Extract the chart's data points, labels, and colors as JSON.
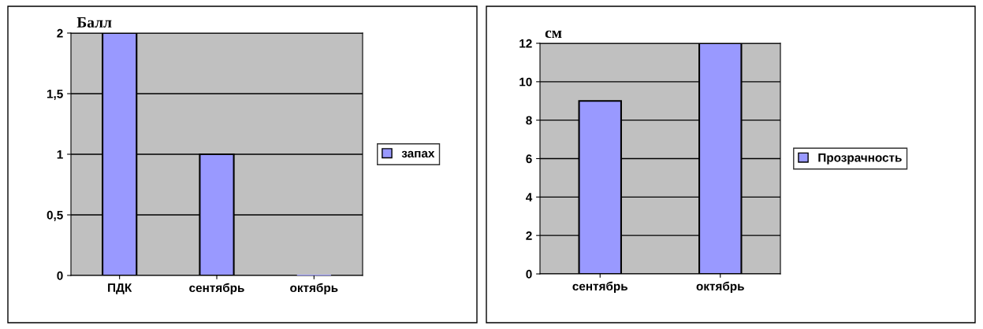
{
  "chart_data": [
    {
      "type": "bar",
      "ylabel": "Балл",
      "categories": [
        "ПДК",
        "сентябрь",
        "октябрь"
      ],
      "series": [
        {
          "name": "запах",
          "color": "#9999ff",
          "values": [
            2,
            1,
            0
          ]
        }
      ],
      "ylim": [
        0,
        2
      ],
      "yticks": [
        0,
        {
          "value": 0.5,
          "label": "0,5"
        },
        1,
        {
          "value": 1.5,
          "label": "1,5"
        },
        2
      ],
      "grid": "y",
      "legend": "right"
    },
    {
      "type": "bar",
      "ylabel": "см",
      "categories": [
        "сентябрь",
        "октябрь"
      ],
      "series": [
        {
          "name": "Прозрачность",
          "color": "#9999ff",
          "values": [
            9,
            12
          ]
        }
      ],
      "ylim": [
        0,
        12
      ],
      "yticks": [
        0,
        2,
        4,
        6,
        8,
        10,
        12
      ],
      "grid": "y",
      "legend": "right"
    }
  ]
}
